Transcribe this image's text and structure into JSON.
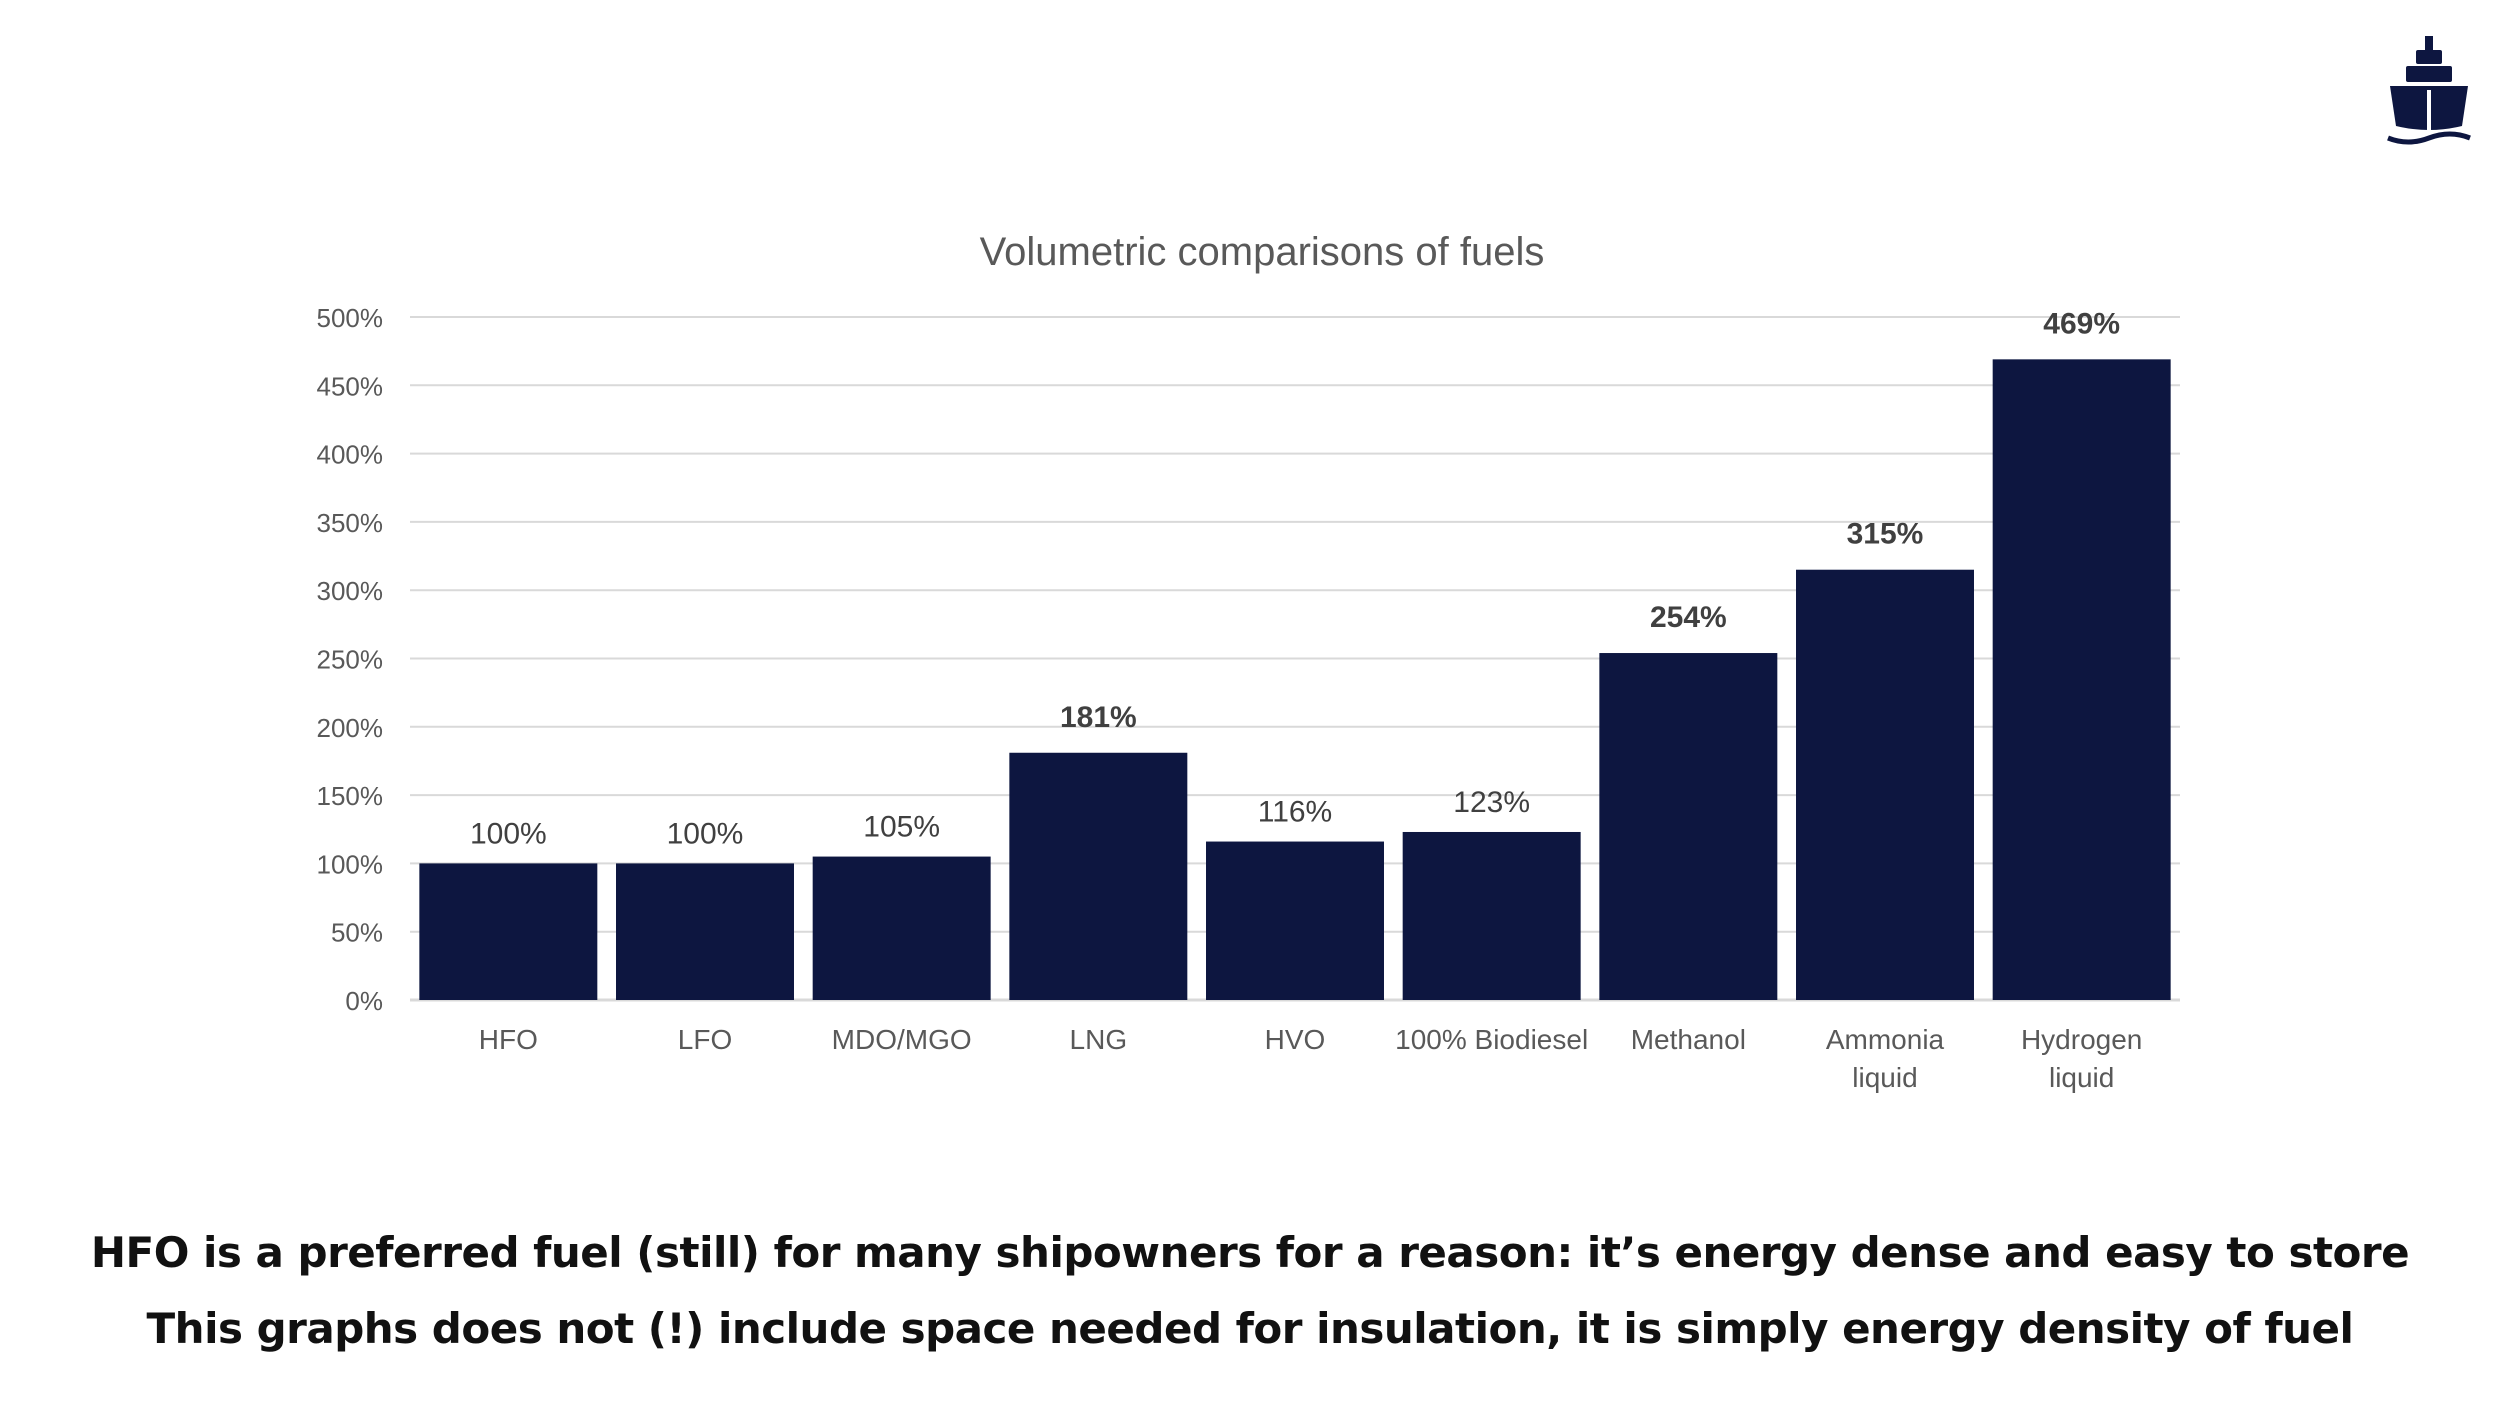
{
  "colors": {
    "bar": "#0d1640",
    "grid": "#d9d9d9",
    "axis_text": "#595959",
    "title_text": "#595959",
    "label_normal": "#404040",
    "label_bold": "#404040",
    "caption": "#111111",
    "logo": "#0d1640"
  },
  "icons": {
    "logo": "ship-icon"
  },
  "chart_data": {
    "type": "bar",
    "title": "Volumetric comparisons of fuels",
    "xlabel": "",
    "ylabel": "",
    "ylim": [
      0,
      500
    ],
    "ytick_step": 50,
    "yticks": [
      "0%",
      "50%",
      "100%",
      "150%",
      "200%",
      "250%",
      "300%",
      "350%",
      "400%",
      "450%",
      "500%"
    ],
    "grid": true,
    "legend": "none",
    "categories": [
      [
        "HFO"
      ],
      [
        "LFO"
      ],
      [
        "MDO/MGO"
      ],
      [
        "LNG"
      ],
      [
        "HVO"
      ],
      [
        "100% Biodiesel"
      ],
      [
        "Methanol"
      ],
      [
        "Ammonia",
        "liquid"
      ],
      [
        "Hydrogen",
        "liquid"
      ]
    ],
    "values": [
      100,
      100,
      105,
      181,
      116,
      123,
      254,
      315,
      469
    ],
    "data_labels": [
      "100%",
      "100%",
      "105%",
      "181%",
      "116%",
      "123%",
      "254%",
      "315%",
      "469%"
    ],
    "label_bold": [
      false,
      false,
      false,
      true,
      false,
      false,
      true,
      true,
      true
    ]
  },
  "captions": {
    "line1": "HFO is a preferred fuel (still) for many shipowners for a reason: it’s energy dense and easy to store",
    "line2": "This graphs does not (!) include space needed for insulation, it is simply energy density of fuel"
  }
}
